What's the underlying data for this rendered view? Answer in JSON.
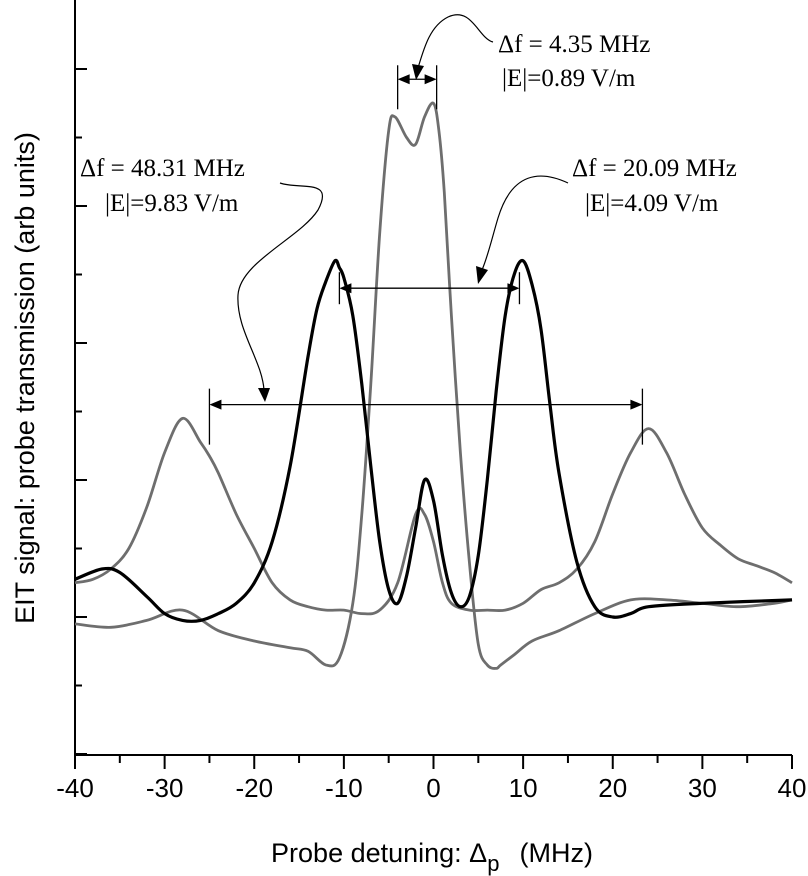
{
  "chart_data": {
    "type": "line",
    "title": "",
    "xlabel": "Probe detuning: Δp   (MHz)",
    "xlabel_main": "Probe detuning: Δ",
    "xlabel_sub": "p",
    "xlabel_unit": "(MHz)",
    "ylabel": "EIT signal: probe transmission (arb units)",
    "xlim": [
      -40,
      40
    ],
    "ylim": [
      -2,
      9
    ],
    "y_baseline": 0,
    "grid": false,
    "x_ticks": [
      -40,
      -30,
      -20,
      -10,
      0,
      10,
      20,
      30,
      40
    ],
    "x_tick_labels": [
      "-40",
      "-30",
      "-20",
      "-10",
      "0",
      "10",
      "20",
      "30",
      "40"
    ],
    "y_tick_labels_shown": false,
    "series": [
      {
        "name": "|E|=0.89 V/m",
        "color": "#6e6e6e",
        "x": [
          -40,
          -36,
          -32,
          -28,
          -24,
          -20,
          -16,
          -14,
          -12,
          -10.5,
          -9,
          -8,
          -7,
          -6,
          -5,
          -4.3,
          -3,
          -2,
          -1,
          0,
          0.6,
          1.2,
          2,
          3,
          4,
          5,
          6,
          7,
          7.5,
          9,
          11,
          14,
          18,
          22,
          26,
          30,
          34,
          38,
          40
        ],
        "y": [
          -0.1,
          -0.15,
          -0.05,
          0.1,
          -0.2,
          -0.35,
          -0.45,
          -0.5,
          -0.7,
          -0.6,
          0.2,
          1.5,
          3.4,
          5.6,
          7.1,
          7.3,
          7.0,
          6.9,
          7.3,
          7.5,
          7.1,
          6.2,
          4.4,
          2.4,
          0.8,
          -0.4,
          -0.7,
          -0.75,
          -0.7,
          -0.55,
          -0.35,
          -0.2,
          0.05,
          0.25,
          0.25,
          0.2,
          0.15,
          0.2,
          0.25
        ]
      },
      {
        "name": "|E|=4.09 V/m",
        "color": "#000000",
        "x": [
          -40,
          -37,
          -35,
          -32,
          -30,
          -28,
          -26,
          -24,
          -22,
          -20,
          -18,
          -16,
          -14,
          -13,
          -12,
          -11,
          -10.5,
          -10,
          -9,
          -8,
          -7,
          -6,
          -5,
          -4,
          -3,
          -2,
          -1,
          0,
          1,
          2,
          3,
          4,
          5,
          6,
          7,
          8,
          9,
          10,
          11,
          12,
          13,
          14,
          16,
          18,
          20,
          22,
          24,
          30,
          40
        ],
        "y": [
          0.55,
          0.7,
          0.65,
          0.3,
          0.05,
          -0.05,
          -0.05,
          0.05,
          0.2,
          0.5,
          1.1,
          2.2,
          3.8,
          4.5,
          4.9,
          5.2,
          5.1,
          4.95,
          4.4,
          3.4,
          2.2,
          1.1,
          0.4,
          0.2,
          0.6,
          1.3,
          2.0,
          1.7,
          0.9,
          0.35,
          0.15,
          0.3,
          0.9,
          2.0,
          3.3,
          4.4,
          5.0,
          5.2,
          4.85,
          4.2,
          3.1,
          2.1,
          0.8,
          0.15,
          0.0,
          0.05,
          0.15,
          0.2,
          0.25
        ]
      },
      {
        "name": "|E|=9.83 V/m",
        "color": "#6e6e6e",
        "x": [
          -40,
          -38,
          -36,
          -34,
          -32,
          -30,
          -28,
          -26,
          -25,
          -24,
          -22,
          -20,
          -18,
          -16,
          -14,
          -12,
          -10,
          -8,
          -6,
          -4,
          -2,
          -1,
          0,
          1,
          2,
          4,
          6,
          8,
          10,
          12,
          14,
          16,
          18,
          20,
          22,
          24,
          26,
          28,
          30,
          32,
          34,
          36,
          38,
          40
        ],
        "y": [
          0.5,
          0.55,
          0.7,
          1.0,
          1.6,
          2.4,
          2.9,
          2.55,
          2.35,
          2.1,
          1.5,
          1.0,
          0.5,
          0.25,
          0.15,
          0.1,
          0.1,
          0.05,
          0.1,
          0.5,
          1.5,
          1.5,
          1.1,
          0.5,
          0.2,
          0.1,
          0.1,
          0.1,
          0.2,
          0.4,
          0.5,
          0.7,
          1.1,
          1.8,
          2.4,
          2.75,
          2.4,
          1.8,
          1.3,
          1.05,
          0.85,
          0.75,
          0.65,
          0.5
        ]
      }
    ],
    "annotations": [
      {
        "id": "ann-089",
        "line1": "Δf = 4.35 MHz",
        "line2": "|E|=0.89 V/m",
        "x_from": -4.0,
        "x_to": 0.35,
        "y": 7.85
      },
      {
        "id": "ann-409",
        "line1": "Δf = 20.09 MHz",
        "line2": "|E|=4.09 V/m",
        "x_from": -10.5,
        "x_to": 9.59,
        "y": 4.8
      },
      {
        "id": "ann-983",
        "line1": "Δf = 48.31 MHz",
        "line2": "|E|=9.83 V/m",
        "x_from": -25.0,
        "x_to": 23.31,
        "y": 3.1
      }
    ]
  }
}
